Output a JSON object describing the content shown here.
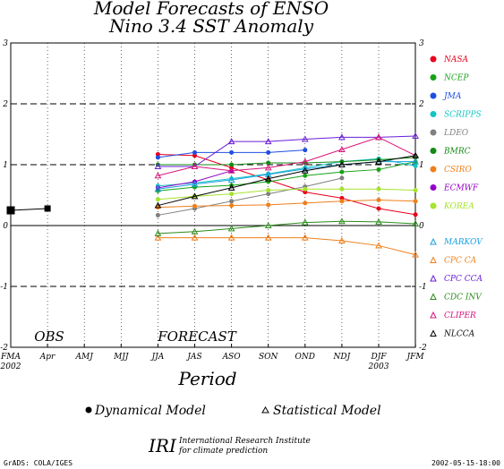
{
  "colors": {
    "NASA": "#e8001c",
    "NCEP": "#16a316",
    "JMA": "#1f4fe0",
    "SCRIPPS": "#14c4c4",
    "LDEO": "#808080",
    "BMRC": "#138a13",
    "CSIRO": "#ef7f1a",
    "ECMWF": "#9400c8",
    "KOREA": "#a6e22e",
    "MARKOV": "#1aa0e0",
    "CPC CA": "#ef7f1a",
    "CPC CCA": "#6a1ed8",
    "CDC INV": "#2a8c1a",
    "CLIPER": "#d8147a",
    "NLCCA": "#000000"
  },
  "chart_data": {
    "type": "line",
    "title": "Model Forecasts of ENSO",
    "subtitle": "Nino 3.4 SST Anomaly",
    "xlabel": "Period",
    "ylabel": "",
    "ylim": [
      -2,
      3
    ],
    "grid": true,
    "x_tick_labels": [
      "FMA",
      "Apr",
      "AMJ",
      "MJJ",
      "JJA",
      "JAS",
      "ASO",
      "SON",
      "OND",
      "NDJ",
      "DJF",
      "JFM"
    ],
    "x_tick_sublabels": [
      "2002",
      "",
      "",
      "",
      "",
      "",
      "",
      "",
      "",
      "",
      "2003",
      ""
    ],
    "y_ticks": [
      -2,
      -1,
      0,
      1,
      2,
      3
    ],
    "obs_label": "OBS",
    "forecast_label": "FORECAST",
    "observed": [
      {
        "x": "FMA",
        "y": 0.25
      },
      {
        "x": "Apr",
        "y": 0.28
      }
    ],
    "series": [
      {
        "name": "NASA",
        "kind": "dynamical",
        "start": 4,
        "values": [
          1.17,
          1.15,
          0.95,
          0.75,
          0.55,
          0.45,
          0.28,
          0.18
        ]
      },
      {
        "name": "NCEP",
        "kind": "dynamical",
        "start": 4,
        "values": [
          0.57,
          0.63,
          0.66,
          0.72,
          0.82,
          0.88,
          0.92,
          1.05
        ]
      },
      {
        "name": "JMA",
        "kind": "dynamical",
        "start": 4,
        "values": [
          1.12,
          1.2,
          1.2,
          1.2,
          1.24
        ]
      },
      {
        "name": "SCRIPPS",
        "kind": "dynamical",
        "start": 4,
        "values": [
          0.65,
          0.7,
          0.77,
          0.85,
          0.95,
          1.05,
          1.1,
          0.98
        ]
      },
      {
        "name": "LDEO",
        "kind": "dynamical",
        "start": 4,
        "values": [
          0.17,
          0.28,
          0.4,
          0.52,
          0.64,
          0.78
        ]
      },
      {
        "name": "BMRC",
        "kind": "dynamical",
        "start": 4,
        "values": [
          1.0,
          1.0,
          1.0,
          1.03,
          1.03,
          1.05,
          1.08,
          1.12
        ]
      },
      {
        "name": "CSIRO",
        "kind": "dynamical",
        "start": 4,
        "values": [
          0.3,
          0.32,
          0.33,
          0.34,
          0.37,
          0.4,
          0.42,
          0.4
        ]
      },
      {
        "name": "ECMWF",
        "kind": "dynamical",
        "start": 4,
        "values": [
          0.62,
          0.72,
          0.9
        ]
      },
      {
        "name": "KOREA",
        "kind": "dynamical",
        "start": 4,
        "values": [
          0.43,
          0.48,
          0.52,
          0.58,
          0.6,
          0.6,
          0.6,
          0.58
        ]
      },
      {
        "name": "MARKOV",
        "kind": "statistical",
        "start": 4,
        "values": [
          0.6,
          0.68,
          0.75,
          0.84,
          0.93,
          1.0,
          1.05,
          1.05
        ]
      },
      {
        "name": "CPC CA",
        "kind": "statistical",
        "start": 4,
        "values": [
          -0.2,
          -0.2,
          -0.2,
          -0.2,
          -0.2,
          -0.25,
          -0.33,
          -0.48
        ]
      },
      {
        "name": "CPC CCA",
        "kind": "statistical",
        "start": 4,
        "values": [
          0.97,
          0.97,
          1.38,
          1.38,
          1.42,
          1.45,
          1.45,
          1.47
        ]
      },
      {
        "name": "CDC INV",
        "kind": "statistical",
        "start": 4,
        "values": [
          -0.13,
          -0.1,
          -0.05,
          0.0,
          0.05,
          0.07,
          0.06,
          0.03
        ]
      },
      {
        "name": "CLIPER",
        "kind": "statistical",
        "start": 4,
        "values": [
          0.82,
          0.97,
          0.9,
          0.95,
          1.05,
          1.25,
          1.45,
          1.15
        ]
      },
      {
        "name": "NLCCA",
        "kind": "statistical",
        "start": 4,
        "values": [
          0.33,
          0.48,
          0.62,
          0.77,
          0.9,
          1.0,
          1.05,
          1.15
        ]
      }
    ],
    "legend_position": "right",
    "key_dynamical": "Dynamical Model",
    "key_statistical": "Statistical Model"
  },
  "footer": {
    "iri_logo": "IRI",
    "iri_line1": "International Research Institute",
    "iri_line2": "for climate prediction",
    "grads": "GrADS: COLA/IGES",
    "timestamp": "2002-05-15-18:00"
  }
}
